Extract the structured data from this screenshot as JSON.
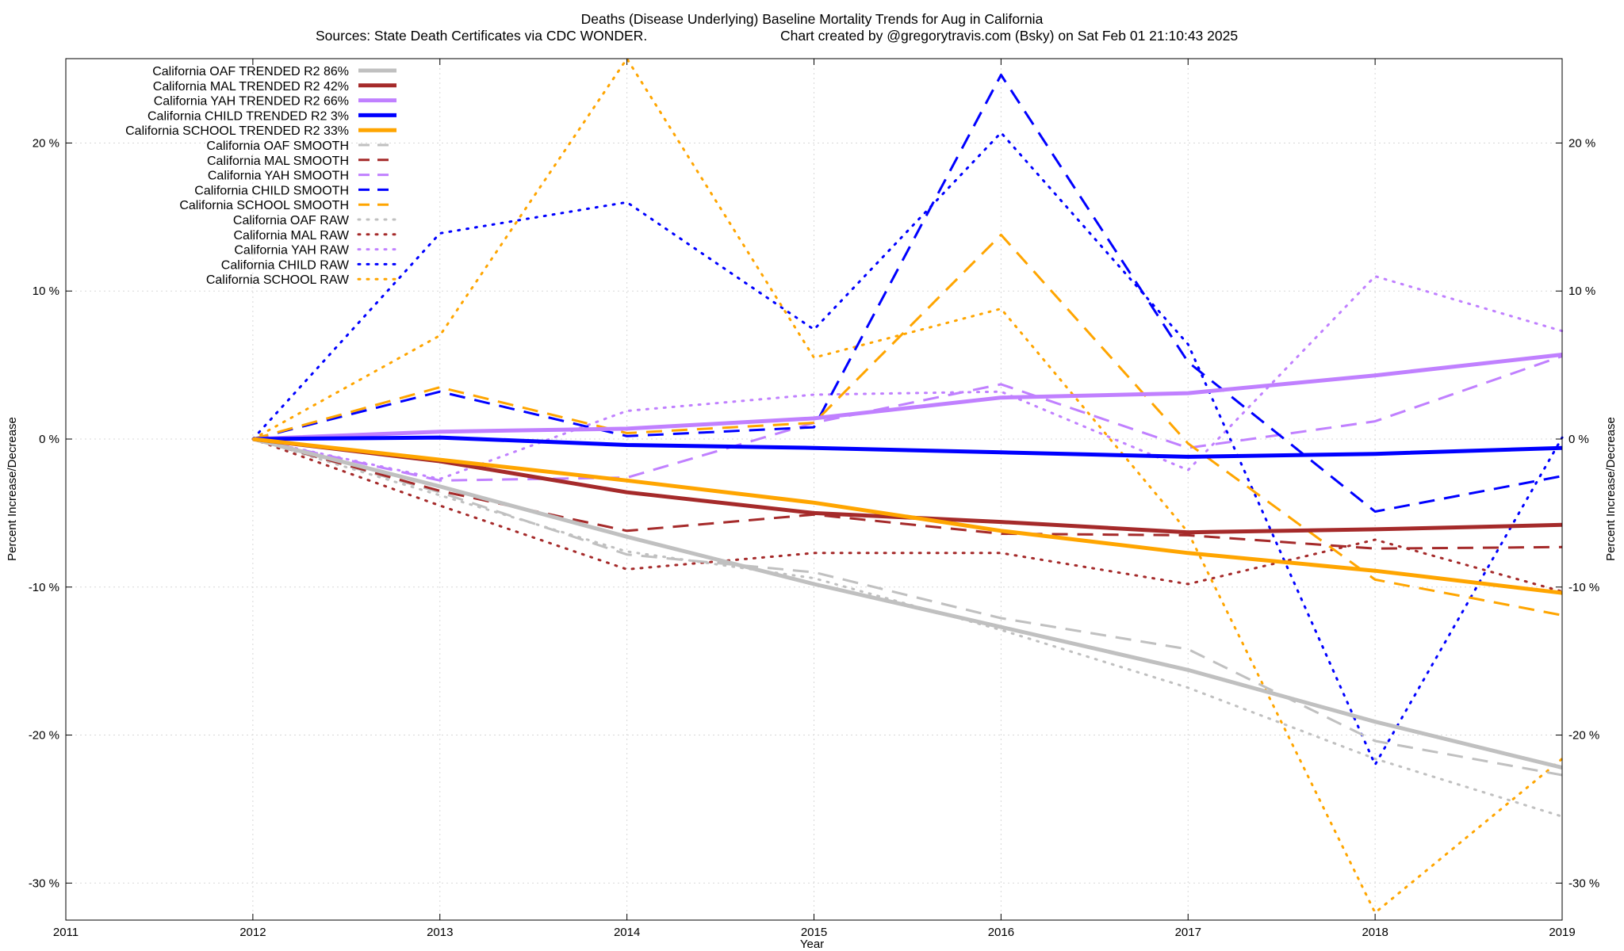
{
  "chart_data": {
    "type": "line",
    "title": "Deaths (Disease Underlying)  Baseline Mortality Trends for Aug in California",
    "subtitle_left": "Sources: State Death Certificates via CDC WONDER.",
    "subtitle_right": "Chart created by @gregorytravis.com (Bsky) on Sat Feb 01 21:10:43 2025",
    "xlabel": "Year",
    "ylabel": "Percent Increase/Decrease",
    "ylabel_right": "Percent Increase/Decrease",
    "xlim": [
      2011,
      2019
    ],
    "ylim": [
      -32.5,
      25.7
    ],
    "xticks": [
      {
        "value": 2011,
        "label": "2011"
      },
      {
        "value": 2012,
        "label": "2012"
      },
      {
        "value": 2013,
        "label": "2013"
      },
      {
        "value": 2014,
        "label": "2014"
      },
      {
        "value": 2015,
        "label": "2015"
      },
      {
        "value": 2016,
        "label": "2016"
      },
      {
        "value": 2017,
        "label": "2017"
      },
      {
        "value": 2018,
        "label": "2018"
      },
      {
        "value": 2019,
        "label": "2019"
      }
    ],
    "yticks": [
      {
        "value": 20,
        "label": "20 %"
      },
      {
        "value": 10,
        "label": "10 %"
      },
      {
        "value": 0,
        "label": "0 %"
      },
      {
        "value": -10,
        "label": "-10 %"
      },
      {
        "value": -20,
        "label": "-20 %"
      },
      {
        "value": -30,
        "label": "-30 %"
      }
    ],
    "grid": true,
    "legend_position": "top-left",
    "x": [
      2012,
      2013,
      2014,
      2015,
      2016,
      2017,
      2018,
      2019
    ],
    "series": [
      {
        "name": "California OAF TRENDED R2  86%",
        "style": "solid",
        "color": "#c0c0c0",
        "values": [
          0,
          -3.2,
          -6.6,
          -9.8,
          -12.7,
          -15.6,
          -19.1,
          -22.2
        ]
      },
      {
        "name": "California MAL TRENDED R2  42%",
        "style": "solid",
        "color": "#a52a2a",
        "values": [
          0,
          -1.5,
          -3.6,
          -5.0,
          -5.6,
          -6.3,
          -6.1,
          -5.8
        ]
      },
      {
        "name": "California YAH TRENDED R2  66%",
        "style": "solid",
        "color": "#c080ff",
        "values": [
          0,
          0.5,
          0.7,
          1.4,
          2.8,
          3.1,
          4.3,
          5.7
        ]
      },
      {
        "name": "California CHILD TRENDED R2   3%",
        "style": "solid",
        "color": "#0000ff",
        "values": [
          0,
          0.1,
          -0.4,
          -0.6,
          -0.9,
          -1.2,
          -1.0,
          -0.6
        ]
      },
      {
        "name": "California SCHOOL TRENDED R2  33%",
        "style": "solid",
        "color": "#ffa500",
        "values": [
          0,
          -1.4,
          -2.8,
          -4.3,
          -6.2,
          -7.7,
          -8.9,
          -10.4
        ]
      },
      {
        "name": "California OAF SMOOTH",
        "style": "dash",
        "color": "#c0c0c0",
        "values": [
          0,
          -3.6,
          -7.8,
          -9.0,
          -12.1,
          -14.2,
          -20.4,
          -22.7
        ]
      },
      {
        "name": "California MAL SMOOTH",
        "style": "dash",
        "color": "#a52a2a",
        "values": [
          0,
          -3.5,
          -6.2,
          -5.1,
          -6.4,
          -6.5,
          -7.4,
          -7.3
        ]
      },
      {
        "name": "California YAH SMOOTH",
        "style": "dash",
        "color": "#c080ff",
        "values": [
          0,
          -2.8,
          -2.6,
          1.1,
          3.7,
          -0.6,
          1.2,
          5.6
        ]
      },
      {
        "name": "California CHILD SMOOTH",
        "style": "dash",
        "color": "#0000ff",
        "values": [
          0,
          3.2,
          0.2,
          0.8,
          24.6,
          5.2,
          -4.9,
          -2.5
        ]
      },
      {
        "name": "California SCHOOL SMOOTH",
        "style": "dash",
        "color": "#ffa500",
        "values": [
          0,
          3.5,
          0.4,
          1.1,
          13.8,
          -0.3,
          -9.5,
          -11.9
        ]
      },
      {
        "name": "California OAF RAW",
        "style": "dot",
        "color": "#c0c0c0",
        "values": [
          0,
          -3.8,
          -7.6,
          -9.4,
          -12.9,
          -16.8,
          -21.6,
          -25.5
        ]
      },
      {
        "name": "California MAL RAW",
        "style": "dot",
        "color": "#a52a2a",
        "values": [
          0,
          -4.5,
          -8.8,
          -7.7,
          -7.7,
          -9.8,
          -6.8,
          -10.3
        ]
      },
      {
        "name": "California YAH RAW",
        "style": "dot",
        "color": "#c080ff",
        "values": [
          0,
          -2.7,
          1.9,
          3.0,
          3.2,
          -2.1,
          11.0,
          7.3
        ]
      },
      {
        "name": "California CHILD RAW",
        "style": "dot",
        "color": "#0000ff",
        "values": [
          0,
          13.9,
          16.0,
          7.4,
          20.7,
          6.4,
          -22.0,
          0.1
        ]
      },
      {
        "name": "California SCHOOL RAW",
        "style": "dot",
        "color": "#ffa500",
        "values": [
          0,
          7.0,
          25.7,
          5.5,
          8.8,
          -6.3,
          -32.0,
          -21.6
        ]
      }
    ]
  }
}
